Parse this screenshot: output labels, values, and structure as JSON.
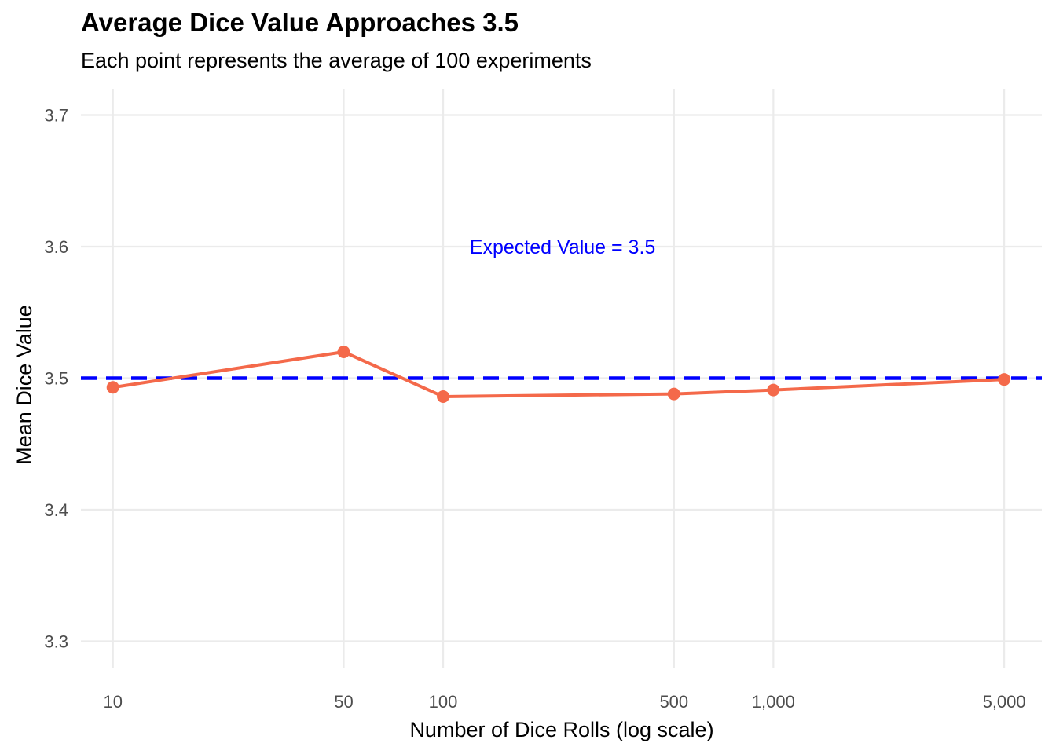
{
  "chart_data": {
    "type": "line",
    "title": "Average Dice Value Approaches 3.5",
    "subtitle": "Each point represents the average of 100 experiments",
    "xlabel": "Number of Dice Rolls (log scale)",
    "ylabel": "Mean Dice Value",
    "x_scale": "log",
    "x_ticks": [
      10,
      50,
      100,
      500,
      1000,
      5000
    ],
    "x_tick_labels": [
      "10",
      "50",
      "100",
      "500",
      "1,000",
      "5,000"
    ],
    "y_ticks": [
      3.3,
      3.4,
      3.5,
      3.6,
      3.7
    ],
    "y_tick_labels": [
      "3.3",
      "3.4",
      "3.5",
      "3.6",
      "3.7"
    ],
    "xlim": [
      8,
      6500
    ],
    "ylim": [
      3.28,
      3.72
    ],
    "grid": true,
    "series": [
      {
        "x": [
          10,
          50,
          100,
          500,
          1000,
          5000
        ],
        "y": [
          3.493,
          3.52,
          3.486,
          3.488,
          3.491,
          3.499
        ],
        "color": "#F4694A"
      }
    ],
    "reference_line": {
      "y": 3.5,
      "style": "dashed",
      "color": "#0000FF"
    },
    "annotation": {
      "text": "Expected Value = 3.5",
      "x": 230,
      "y": 3.6,
      "color": "#0000FF"
    }
  }
}
